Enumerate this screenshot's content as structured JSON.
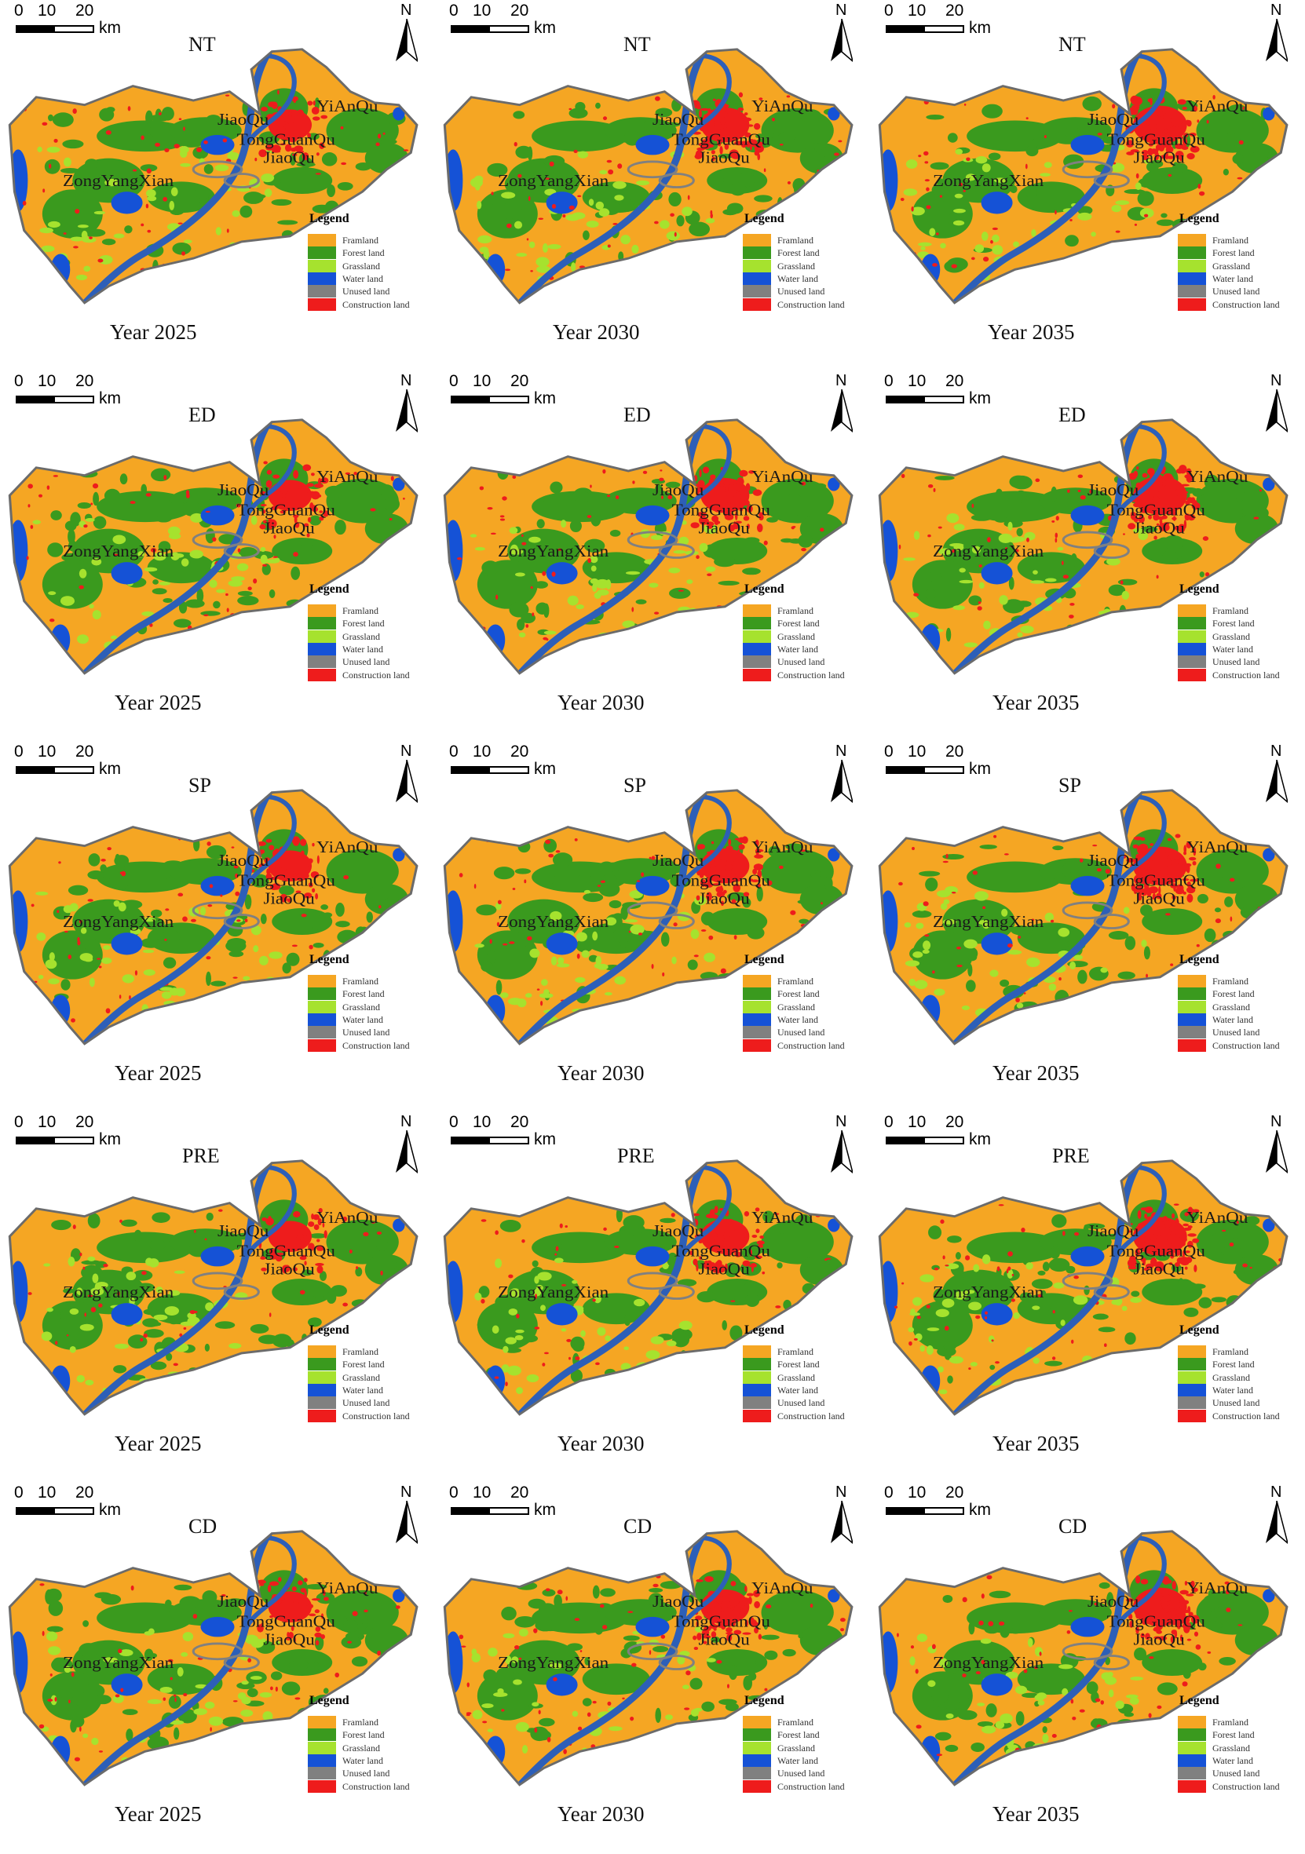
{
  "scenarios": [
    "NT",
    "ED",
    "SP",
    "PRE",
    "CD"
  ],
  "years": [
    "Year 2025",
    "Year 2030",
    "Year 2035"
  ],
  "scale_bar": {
    "ticks": [
      "0",
      "10",
      "20"
    ],
    "unit": "km"
  },
  "north_label": "N",
  "legend": {
    "title": "Legend",
    "items": [
      {
        "label": "Framland",
        "color": "#f5a623"
      },
      {
        "label": "Forest land",
        "color": "#3a9a1e"
      },
      {
        "label": "Grassland",
        "color": "#a6e22e"
      },
      {
        "label": "Water land",
        "color": "#1552d6"
      },
      {
        "label": "Unused land",
        "color": "#808080"
      },
      {
        "label": "Construction land",
        "color": "#ee1c1c"
      }
    ]
  },
  "place_names": [
    "JiaoQu",
    "YiAnQu",
    "TongGuanQu",
    "JiaoQu",
    "ZongYangXian"
  ],
  "colors": {
    "boundary": "#6b6b6b",
    "river": "#2d5fb8"
  }
}
